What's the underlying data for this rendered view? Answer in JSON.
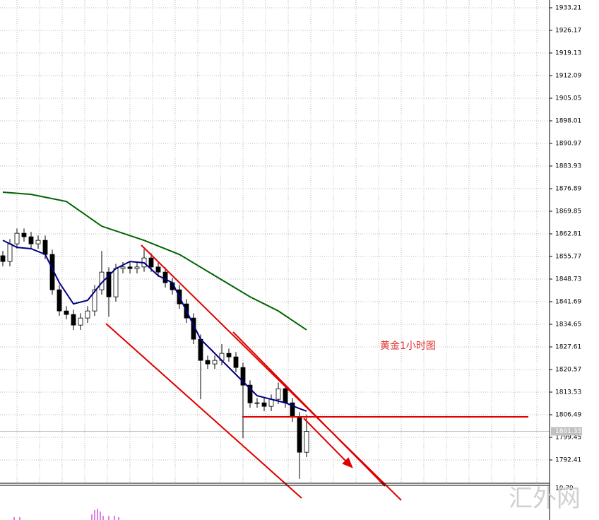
{
  "chart_data": {
    "type": "candlestick",
    "annotation": "黄金1小时图",
    "watermark": "汇外网",
    "ylim": [
      1785.15,
      1935.63
    ],
    "yticks": [
      1933.21,
      1926.17,
      1919.13,
      1912.09,
      1905.05,
      1898.01,
      1890.97,
      1883.93,
      1876.89,
      1869.85,
      1862.81,
      1855.77,
      1848.73,
      1841.69,
      1834.65,
      1827.61,
      1820.57,
      1813.53,
      1806.49,
      1799.45,
      1792.41
    ],
    "grid": true,
    "current_price": 1801.33,
    "indicator_ticks": [
      10.79
    ],
    "up_color": "#ffffff",
    "down_color": "#000000",
    "open": [
      1856.0,
      1854.2,
      1859.7,
      1863.0,
      1861.9,
      1859.7,
      1860.8,
      1856.4,
      1845.4,
      1838.8,
      1837.7,
      1834.4,
      1836.6,
      1838.8,
      1845.4,
      1850.9,
      1843.2,
      1852.0,
      1852.5,
      1852.0,
      1852.5,
      1855.3,
      1852.5,
      1850.9,
      1847.6,
      1845.4,
      1841.0,
      1836.6,
      1830.0,
      1823.4,
      1822.3,
      1823.4,
      1825.6,
      1824.5,
      1821.2,
      1815.7,
      1810.2,
      1810.2,
      1809.1,
      1811.3,
      1814.6,
      1810.2,
      1805.8,
      1794.8
    ],
    "high": [
      1857.5,
      1861.2,
      1864.5,
      1864.5,
      1863.4,
      1862.3,
      1862.3,
      1857.9,
      1846.9,
      1840.3,
      1839.2,
      1838.1,
      1840.3,
      1846.9,
      1857.5,
      1852.4,
      1853.5,
      1854.0,
      1854.0,
      1854.0,
      1858.0,
      1856.8,
      1854.0,
      1852.4,
      1849.1,
      1846.9,
      1842.5,
      1838.1,
      1831.5,
      1824.9,
      1824.9,
      1828.5,
      1827.1,
      1826.0,
      1822.7,
      1817.2,
      1811.7,
      1811.7,
      1812.8,
      1816.5,
      1816.1,
      1811.7,
      1807.3,
      1806.5
    ],
    "low": [
      1852.7,
      1852.7,
      1858.2,
      1860.4,
      1858.2,
      1858.2,
      1854.9,
      1843.9,
      1837.3,
      1836.2,
      1832.9,
      1832.9,
      1835.1,
      1837.3,
      1843.9,
      1837.0,
      1841.7,
      1850.5,
      1850.5,
      1850.5,
      1851.0,
      1851.0,
      1849.4,
      1846.1,
      1843.9,
      1839.5,
      1835.1,
      1828.5,
      1811.3,
      1820.8,
      1820.8,
      1821.9,
      1823.0,
      1819.7,
      1799.2,
      1808.7,
      1808.7,
      1807.6,
      1807.6,
      1809.8,
      1808.7,
      1804.3,
      1786.5,
      1793.3
    ],
    "close": [
      1854.2,
      1859.7,
      1863.0,
      1861.9,
      1859.7,
      1860.8,
      1856.4,
      1845.4,
      1838.8,
      1837.7,
      1834.4,
      1836.6,
      1838.8,
      1845.4,
      1850.9,
      1843.2,
      1852.0,
      1852.5,
      1852.0,
      1852.5,
      1855.3,
      1852.5,
      1850.9,
      1847.6,
      1845.4,
      1841.0,
      1836.6,
      1830.0,
      1823.4,
      1822.3,
      1823.4,
      1825.6,
      1824.5,
      1821.2,
      1815.7,
      1810.2,
      1810.2,
      1809.1,
      1811.3,
      1814.6,
      1810.2,
      1805.8,
      1794.8,
      1801.3
    ],
    "lines": [
      {
        "color": "#006400",
        "x": [
          0,
          4,
          9,
          14,
          20,
          25,
          30,
          35,
          39,
          43
        ],
        "values": [
          1875.8,
          1875.1,
          1872.9,
          1865.2,
          1860.8,
          1856.4,
          1849.8,
          1843.2,
          1838.8,
          1832.9
        ]
      },
      {
        "color": "#000080",
        "x": [
          0,
          2,
          4,
          6,
          8,
          10,
          12,
          14,
          16,
          18,
          20,
          22,
          24,
          26,
          28,
          30,
          32,
          34,
          36,
          38,
          40,
          42,
          43
        ],
        "values": [
          1860.8,
          1858.6,
          1858.2,
          1856.4,
          1847.6,
          1841.0,
          1842.1,
          1847.6,
          1852.0,
          1854.2,
          1853.8,
          1849.8,
          1847.6,
          1838.8,
          1830.0,
          1825.6,
          1821.2,
          1816.8,
          1812.4,
          1811.3,
          1810.2,
          1808.4,
          1807.6
        ]
      }
    ]
  }
}
